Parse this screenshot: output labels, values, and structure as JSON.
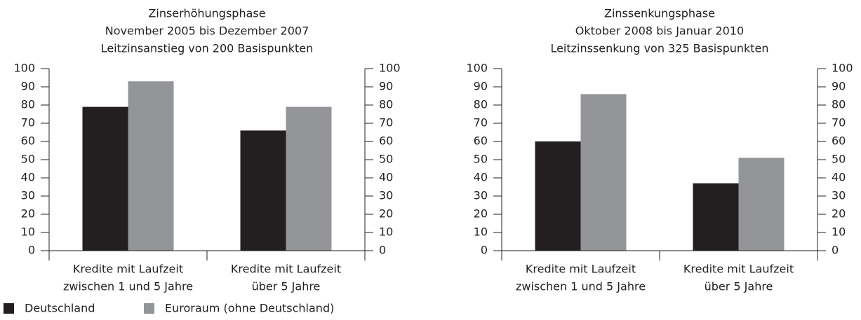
{
  "legend": [
    {
      "name": "Deutschland",
      "color": "#231f20"
    },
    {
      "name": "Euroraum (ohne Deutschland)",
      "color": "#939598"
    }
  ],
  "chart_data": [
    {
      "type": "bar",
      "title": [
        "Zinserhöhungsphase",
        "November 2005 bis Dezember 2007",
        "Leitzinsanstieg von 200 Basispunkten"
      ],
      "categories": [
        [
          "Kredite mit Laufzeit",
          "zwischen 1 und 5 Jahre"
        ],
        [
          "Kredite mit Laufzeit",
          "über 5 Jahre"
        ]
      ],
      "series": [
        {
          "values": [
            79,
            66
          ]
        },
        {
          "values": [
            93,
            79
          ]
        }
      ],
      "ylim": [
        0,
        100
      ],
      "yticks": [
        0,
        10,
        20,
        30,
        40,
        50,
        60,
        70,
        80,
        90,
        100
      ],
      "y2lim": [
        0,
        100
      ],
      "y2ticks": [
        0,
        10,
        20,
        30,
        40,
        50,
        60,
        70,
        80,
        90,
        100
      ],
      "grid": false
    },
    {
      "type": "bar",
      "title": [
        "Zinssenkungsphase",
        "Oktober 2008 bis Januar 2010",
        "Leitzinssenkung von 325 Basispunkten"
      ],
      "categories": [
        [
          "Kredite mit Laufzeit",
          "zwischen 1 und 5 Jahre"
        ],
        [
          "Kredite mit Laufzeit",
          "über 5 Jahre"
        ]
      ],
      "series": [
        {
          "values": [
            60,
            37
          ]
        },
        {
          "values": [
            86,
            51
          ]
        }
      ],
      "ylim": [
        0,
        100
      ],
      "yticks": [
        0,
        10,
        20,
        30,
        40,
        50,
        60,
        70,
        80,
        90,
        100
      ],
      "y2lim": [
        0,
        100
      ],
      "y2ticks": [
        0,
        10,
        20,
        30,
        40,
        50,
        60,
        70,
        80,
        90,
        100
      ],
      "grid": false
    }
  ]
}
